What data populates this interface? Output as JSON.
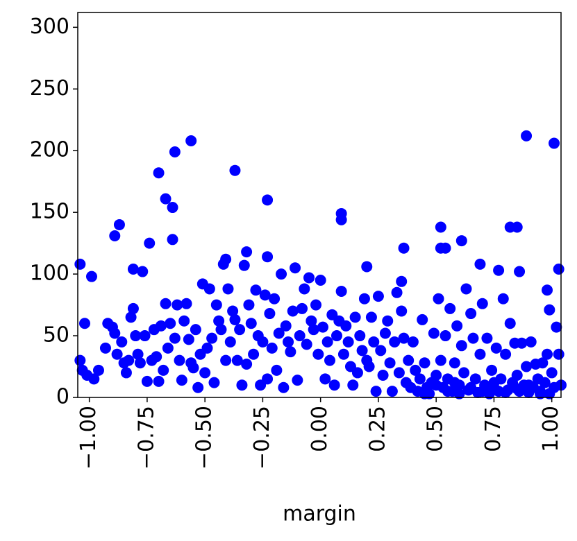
{
  "chart_data": {
    "type": "scatter",
    "x_label": "margin",
    "color": "#0000ff",
    "x": [
      -1.04,
      -0.99,
      -1.02,
      -0.89,
      -0.87,
      -0.81,
      -0.77,
      -0.74,
      -0.7,
      -0.67,
      -0.64,
      -0.63,
      -0.64,
      -0.56,
      -0.37,
      -0.23,
      -0.23,
      -0.32,
      -0.41,
      0.09,
      0.09,
      0.36,
      0.52,
      0.52,
      0.54,
      0.61,
      0.69,
      0.77,
      0.82,
      0.85,
      0.86,
      0.89,
      1.01,
      1.03,
      0.98,
      0.99,
      0.2,
      0.35,
      -1.04,
      -1.03,
      -1.01,
      -0.98,
      -0.96,
      -0.93,
      -0.92,
      -0.9,
      -0.89,
      -0.88,
      -0.86,
      -0.85,
      -0.84,
      -0.83,
      -0.82,
      -0.81,
      -0.8,
      -0.79,
      -0.78,
      -0.76,
      -0.75,
      -0.73,
      -0.72,
      -0.71,
      -0.7,
      -0.69,
      -0.68,
      -0.67,
      -0.66,
      -0.65,
      -0.63,
      -0.62,
      -0.61,
      -0.6,
      -0.59,
      -0.58,
      -0.57,
      -0.56,
      -0.55,
      -0.54,
      -0.53,
      -0.52,
      -0.51,
      -0.5,
      -0.49,
      -0.48,
      -0.47,
      -0.46,
      -0.45,
      -0.44,
      -0.43,
      -0.42,
      -0.41,
      -0.4,
      -0.39,
      -0.38,
      -0.37,
      -0.36,
      -0.35,
      -0.34,
      -0.33,
      -0.32,
      -0.31,
      -0.3,
      -0.29,
      -0.28,
      -0.27,
      -0.26,
      -0.25,
      -0.24,
      -0.23,
      -0.22,
      -0.21,
      -0.2,
      -0.19,
      -0.18,
      -0.17,
      -0.16,
      -0.15,
      -0.14,
      -0.13,
      -0.12,
      -0.11,
      -0.1,
      -0.09,
      -0.08,
      -0.07,
      -0.06,
      -0.05,
      -0.04,
      -0.03,
      -0.02,
      -0.01,
      0.0,
      0.01,
      0.02,
      0.03,
      0.04,
      0.05,
      0.06,
      0.07,
      0.08,
      0.09,
      0.1,
      0.11,
      0.12,
      0.13,
      0.14,
      0.15,
      0.16,
      0.17,
      0.18,
      0.19,
      0.2,
      0.21,
      0.22,
      0.23,
      0.24,
      0.25,
      0.26,
      0.27,
      0.28,
      0.29,
      0.3,
      0.31,
      0.32,
      0.33,
      0.34,
      0.35,
      0.36,
      0.37,
      0.38,
      0.39,
      0.4,
      0.41,
      0.42,
      0.43,
      0.44,
      0.45,
      0.46,
      0.47,
      0.48,
      0.49,
      0.5,
      0.51,
      0.52,
      0.53,
      0.54,
      0.55,
      0.56,
      0.57,
      0.58,
      0.59,
      0.6,
      0.61,
      0.62,
      0.63,
      0.64,
      0.65,
      0.66,
      0.67,
      0.68,
      0.69,
      0.7,
      0.71,
      0.72,
      0.73,
      0.74,
      0.75,
      0.76,
      0.77,
      0.78,
      0.79,
      0.8,
      0.81,
      0.82,
      0.83,
      0.84,
      0.85,
      0.86,
      0.87,
      0.88,
      0.89,
      0.9,
      0.91,
      0.92,
      0.93,
      0.94,
      0.95,
      0.96,
      0.97,
      0.98,
      0.99,
      1.0,
      1.01,
      1.02,
      1.03,
      1.04,
      0.55,
      0.6,
      0.65,
      0.7,
      0.75,
      0.8,
      0.85,
      0.9,
      0.95,
      0.5,
      0.45,
      0.58
    ],
    "values": [
      108,
      98,
      60,
      131,
      140,
      104,
      102,
      125,
      182,
      161,
      154,
      199,
      128,
      208,
      184,
      160,
      114,
      118,
      112,
      149,
      144,
      121,
      138,
      121,
      121,
      127,
      108,
      103,
      138,
      138,
      102,
      212,
      206,
      104,
      87,
      71,
      106,
      94,
      30,
      22,
      18,
      15,
      22,
      40,
      60,
      57,
      52,
      35,
      45,
      28,
      20,
      30,
      65,
      72,
      50,
      35,
      28,
      50,
      13,
      30,
      55,
      33,
      13,
      58,
      22,
      76,
      40,
      60,
      48,
      75,
      30,
      14,
      62,
      76,
      47,
      28,
      24,
      55,
      8,
      35,
      92,
      20,
      40,
      88,
      48,
      12,
      75,
      62,
      55,
      108,
      30,
      88,
      45,
      70,
      63,
      30,
      55,
      10,
      107,
      27,
      75,
      60,
      35,
      87,
      50,
      10,
      45,
      83,
      15,
      68,
      40,
      80,
      22,
      52,
      100,
      8,
      58,
      45,
      37,
      70,
      105,
      14,
      50,
      72,
      88,
      43,
      97,
      62,
      55,
      75,
      35,
      95,
      57,
      15,
      45,
      30,
      67,
      10,
      50,
      62,
      86,
      35,
      58,
      45,
      25,
      10,
      65,
      20,
      50,
      38,
      80,
      30,
      25,
      65,
      45,
      5,
      82,
      38,
      18,
      52,
      62,
      28,
      5,
      45,
      85,
      20,
      70,
      48,
      12,
      30,
      8,
      45,
      22,
      5,
      15,
      63,
      28,
      8,
      3,
      12,
      52,
      18,
      80,
      30,
      8,
      50,
      15,
      72,
      5,
      28,
      58,
      10,
      42,
      20,
      88,
      6,
      68,
      48,
      15,
      4,
      35,
      76,
      10,
      48,
      3,
      22,
      8,
      40,
      5,
      15,
      80,
      35,
      6,
      60,
      12,
      44,
      18,
      5,
      44,
      10,
      25,
      4,
      45,
      8,
      27,
      15,
      5,
      28,
      12,
      35,
      3,
      20,
      8,
      57,
      35,
      10,
      5,
      3,
      8,
      5,
      12,
      4,
      7,
      10,
      3,
      10,
      3,
      12
    ],
    "xlim": [
      -1.05,
      1.04
    ],
    "ylim": [
      0,
      312
    ],
    "xticks": [
      {
        "value": -1,
        "label": "−1.00"
      },
      {
        "value": -0.75,
        "label": "−0.75"
      },
      {
        "value": -0.5,
        "label": "−0.50"
      },
      {
        "value": -0.25,
        "label": "−0.25"
      },
      {
        "value": 0,
        "label": "0.00"
      },
      {
        "value": 0.25,
        "label": "0.25"
      },
      {
        "value": 0.5,
        "label": "0.50"
      },
      {
        "value": 0.75,
        "label": "0.75"
      },
      {
        "value": 1,
        "label": "1.00"
      }
    ],
    "yticks": [
      0,
      50,
      100,
      150,
      200,
      250,
      300
    ]
  }
}
